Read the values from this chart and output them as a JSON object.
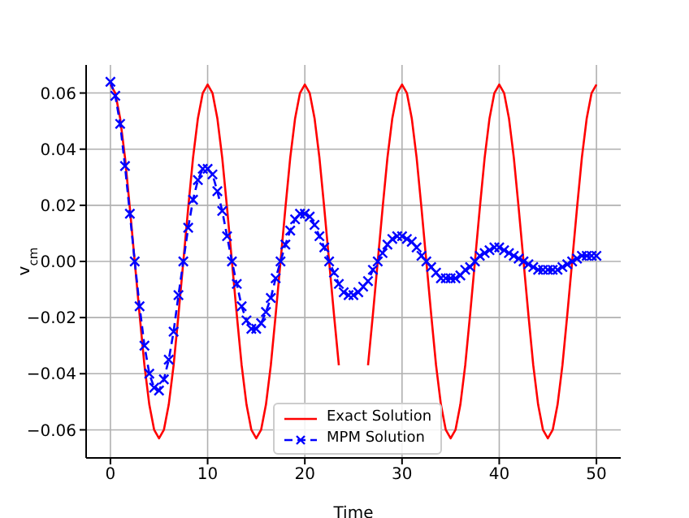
{
  "chart_data": {
    "type": "line",
    "xlabel": "Time",
    "ylabel": "v$_{cm}$",
    "x": [
      0,
      0.5,
      1,
      1.5,
      2,
      2.5,
      3,
      3.5,
      4,
      4.5,
      5,
      5.5,
      6,
      6.5,
      7,
      7.5,
      8,
      8.5,
      9,
      9.5,
      10,
      10.5,
      11,
      11.5,
      12,
      12.5,
      13,
      13.5,
      14,
      14.5,
      15,
      15.5,
      16,
      16.5,
      17,
      17.5,
      18,
      18.5,
      19,
      19.5,
      20,
      20.5,
      21,
      21.5,
      22,
      22.5,
      23,
      23.5,
      24,
      24.5,
      25,
      25.5,
      26,
      26.5,
      27,
      27.5,
      28,
      28.5,
      29,
      29.5,
      30,
      30.5,
      31,
      31.5,
      32,
      32.5,
      33,
      33.5,
      34,
      34.5,
      35,
      35.5,
      36,
      36.5,
      37,
      37.5,
      38,
      38.5,
      39,
      39.5,
      40,
      40.5,
      41,
      41.5,
      42,
      42.5,
      43,
      43.5,
      44,
      44.5,
      45,
      45.5,
      46,
      46.5,
      47,
      47.5,
      48,
      48.5,
      49,
      49.5,
      50
    ],
    "series": [
      {
        "name": "Exact Solution",
        "color": "#ff0000",
        "marker": "none",
        "line_style": "solid",
        "values": [
          0.063,
          0.06,
          0.051,
          0.037,
          0.019,
          0,
          -0.019,
          -0.037,
          -0.051,
          -0.06,
          -0.063,
          -0.06,
          -0.051,
          -0.037,
          -0.019,
          0,
          0.019,
          0.037,
          0.051,
          0.06,
          0.063,
          0.06,
          0.051,
          0.037,
          0.019,
          0,
          -0.019,
          -0.037,
          -0.051,
          -0.06,
          -0.063,
          -0.06,
          -0.051,
          -0.037,
          -0.019,
          0,
          0.019,
          0.037,
          0.051,
          0.06,
          0.063,
          0.06,
          0.051,
          0.037,
          0.019,
          0,
          -0.019,
          -0.037,
          null,
          null,
          null,
          null,
          null,
          -0.037,
          -0.019,
          0,
          0.019,
          0.037,
          0.051,
          0.06,
          0.063,
          0.06,
          0.051,
          0.037,
          0.019,
          0,
          -0.019,
          -0.037,
          -0.051,
          -0.06,
          -0.063,
          -0.06,
          -0.051,
          -0.037,
          -0.019,
          0,
          0.019,
          0.037,
          0.051,
          0.06,
          0.063,
          0.06,
          0.051,
          0.037,
          0.019,
          0,
          -0.019,
          -0.037,
          -0.051,
          -0.06,
          -0.063,
          -0.06,
          -0.051,
          -0.037,
          -0.019,
          0,
          0.019,
          0.037,
          0.051,
          0.06,
          0.063
        ]
      },
      {
        "name": "MPM Solution",
        "color": "#0000ff",
        "marker": "cross",
        "line_style": "dashed",
        "values": [
          0.064,
          0.059,
          0.049,
          0.034,
          0.017,
          0,
          -0.016,
          -0.03,
          -0.04,
          -0.045,
          -0.046,
          -0.042,
          -0.035,
          -0.025,
          -0.012,
          0,
          0.012,
          0.022,
          0.029,
          0.033,
          0.033,
          0.031,
          0.025,
          0.018,
          0.009,
          0,
          -0.008,
          -0.016,
          -0.021,
          -0.024,
          -0.024,
          -0.022,
          -0.018,
          -0.013,
          -0.006,
          0,
          0.006,
          0.011,
          0.015,
          0.017,
          0.017,
          0.016,
          0.013,
          0.009,
          0.005,
          0,
          -0.004,
          -0.008,
          -0.011,
          -0.012,
          -0.012,
          -0.011,
          -0.009,
          -0.007,
          -0.003,
          0,
          0.003,
          0.006,
          0.008,
          0.009,
          0.009,
          0.008,
          0.007,
          0.005,
          0.002,
          0,
          -0.002,
          -0.004,
          -0.006,
          -0.006,
          -0.006,
          -0.006,
          -0.005,
          -0.003,
          -0.002,
          0,
          0.002,
          0.003,
          0.004,
          0.005,
          0.005,
          0.004,
          0.003,
          0.002,
          0.001,
          0,
          -0.001,
          -0.002,
          -0.003,
          -0.003,
          -0.003,
          -0.003,
          -0.003,
          -0.002,
          -0.001,
          0,
          0.001,
          0.002,
          0.002,
          0.002,
          0.002
        ]
      }
    ],
    "xlim": [
      -2.5,
      52.5
    ],
    "xticks": [
      0,
      10,
      20,
      30,
      40,
      50
    ],
    "ylim": [
      -0.07,
      0.07
    ],
    "yticks": [
      {
        "value": -0.06,
        "label": "−0.06"
      },
      {
        "value": -0.04,
        "label": "−0.04"
      },
      {
        "value": -0.02,
        "label": "−0.02"
      },
      {
        "value": 0,
        "label": "0.00"
      },
      {
        "value": 0.02,
        "label": "0.02"
      },
      {
        "value": 0.04,
        "label": "0.04"
      },
      {
        "value": 0.06,
        "label": "0.06"
      }
    ],
    "grid": true,
    "legend": "bottom"
  }
}
